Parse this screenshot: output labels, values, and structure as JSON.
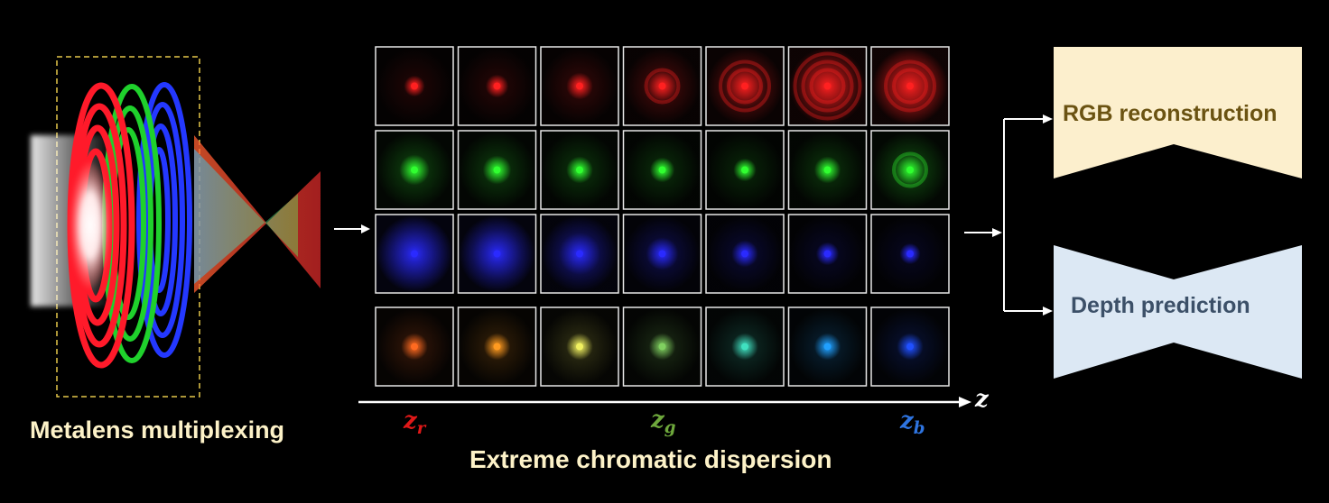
{
  "labels": {
    "metalens_caption": "Metalens multiplexing",
    "dispersion_caption": "Extreme chromatic dispersion",
    "rgb_output": "RGB reconstruction",
    "depth_output": "Depth prediction",
    "z_axis": "z",
    "z_r": "z",
    "z_r_sub": "r",
    "z_g": "z",
    "z_g_sub": "g",
    "z_b": "z",
    "z_b_sub": "b"
  },
  "colors": {
    "caption": "#fdf2c8",
    "red_label": "#e01818",
    "green_label": "#6ea83c",
    "blue_label": "#2e74e0",
    "rgb_box": "#fcefcd",
    "depth_box": "#dce8f4"
  },
  "psf_grid": {
    "columns": 7,
    "rows": [
      {
        "channel": "red",
        "psf_colors": [
          "#ff2020",
          "#ff2020",
          "#ff2020",
          "#ff2020",
          "#ff2020",
          "#ff2020",
          "#ff2020"
        ],
        "blur": [
          0.15,
          0.2,
          0.3,
          0.45,
          0.65,
          0.9,
          0.95
        ],
        "rings": [
          0,
          0,
          0,
          1,
          2,
          3,
          2
        ]
      },
      {
        "channel": "green",
        "psf_colors": [
          "#30ff30",
          "#30ff30",
          "#30ff30",
          "#30ff30",
          "#30ff30",
          "#30ff30",
          "#30ff30"
        ],
        "blur": [
          0.4,
          0.35,
          0.3,
          0.25,
          0.2,
          0.3,
          0.45
        ],
        "rings": [
          0,
          0,
          0,
          0,
          0,
          0,
          1
        ]
      },
      {
        "channel": "blue",
        "psf_colors": [
          "#2a2aff",
          "#2a2aff",
          "#2a2aff",
          "#2a2aff",
          "#2a2aff",
          "#2a2aff",
          "#2a2aff"
        ],
        "blur": [
          0.95,
          0.9,
          0.7,
          0.45,
          0.3,
          0.2,
          0.15
        ],
        "rings": [
          0,
          0,
          0,
          0,
          0,
          0,
          0
        ]
      },
      {
        "channel": "combined",
        "psf_colors": [
          "#ff6a20",
          "#ff9a20",
          "#f0f060",
          "#80d060",
          "#40e0c0",
          "#20a0ff",
          "#2050ff"
        ],
        "blur": [
          0.3,
          0.3,
          0.3,
          0.3,
          0.3,
          0.3,
          0.3
        ],
        "rings": [
          0,
          0,
          0,
          0,
          0,
          0,
          0
        ]
      }
    ]
  }
}
